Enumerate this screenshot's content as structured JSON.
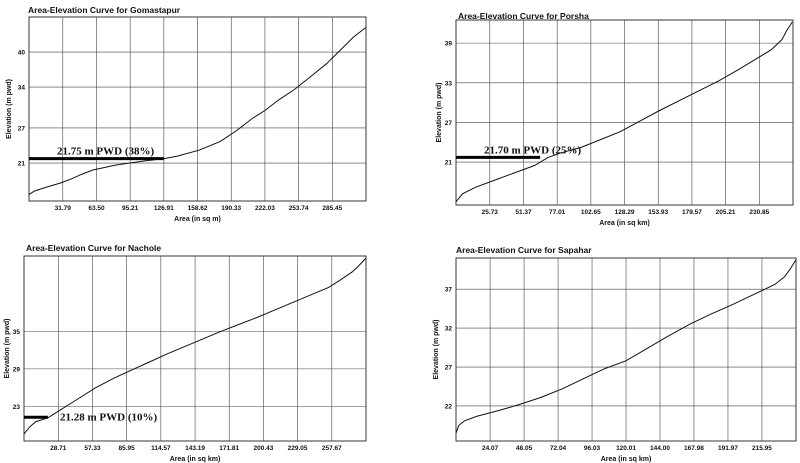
{
  "chart_data": [
    {
      "type": "line",
      "title": "Area-Elevation Curve for Gomastapur",
      "xlabel": "Area (in sq m)",
      "ylabel": "Elevation (m pwd)",
      "x_ticks": [
        "31.79",
        "63.50",
        "95.21",
        "126.91",
        "158.62",
        "190.33",
        "222.03",
        "253.74",
        "285.45"
      ],
      "y_ticks": [
        "21",
        "27",
        "34",
        "40"
      ],
      "xlim": [
        0,
        317.16
      ],
      "ylim": [
        14.5,
        46
      ],
      "grid": true,
      "series": [
        {
          "x": [
            0,
            5,
            15,
            30,
            40,
            50,
            60,
            70,
            80,
            95,
            110,
            126.91,
            140,
            160,
            180,
            195,
            210,
            222,
            235,
            250,
            265,
            280,
            295,
            305,
            317
          ],
          "y": [
            15.6,
            16.2,
            16.8,
            17.6,
            18.3,
            19.1,
            19.8,
            20.2,
            20.6,
            21.0,
            21.4,
            21.75,
            22.2,
            23.2,
            24.7,
            26.5,
            28.6,
            30.0,
            31.8,
            33.6,
            35.8,
            38.0,
            40.7,
            42.5,
            44.2
          ]
        }
      ],
      "annotation": {
        "text": "21.75 m PWD (38%)",
        "x": 126.91,
        "y": 21.75
      }
    },
    {
      "type": "line",
      "title": "Area-Elevation Curve for Porsha",
      "xlabel": "Area (in sq km)",
      "ylabel": "Elevation (m pwd)",
      "x_ticks": [
        "25.73",
        "51.37",
        "77.01",
        "102.65",
        "128.29",
        "153.93",
        "179.57",
        "205.21",
        "230.85"
      ],
      "y_ticks": [
        "21",
        "27",
        "33",
        "39"
      ],
      "xlim": [
        0,
        256.5
      ],
      "ylim": [
        14.5,
        42.5
      ],
      "grid": true,
      "series": [
        {
          "x": [
            0,
            5,
            15,
            30,
            45,
            60,
            70,
            80,
            95,
            110,
            125,
            140,
            155,
            170,
            185,
            200,
            215,
            230,
            240,
            248,
            252,
            256
          ],
          "y": [
            15.0,
            16.2,
            17.2,
            18.3,
            19.4,
            20.5,
            21.7,
            22.4,
            23.2,
            24.4,
            25.6,
            27.2,
            28.8,
            30.3,
            31.8,
            33.3,
            35.0,
            36.8,
            38.0,
            39.5,
            41.0,
            42.2
          ]
        }
      ],
      "annotation": {
        "text": "21.70 m PWD (25%)",
        "x": 64,
        "y": 21.7
      }
    },
    {
      "type": "line",
      "title": "Area-Elevation Curve for Nachole",
      "xlabel": "Area (in sq km)",
      "ylabel": "Elevation (m pwd)",
      "x_ticks": [
        "28.71",
        "57.33",
        "85.95",
        "114.57",
        "143.19",
        "171.81",
        "200.43",
        "229.05",
        "257.67"
      ],
      "y_ticks": [
        "23",
        "29",
        "35"
      ],
      "xlim": [
        0,
        286.3
      ],
      "ylim": [
        17.5,
        47
      ],
      "grid": true,
      "series": [
        {
          "x": [
            0,
            5,
            10,
            20,
            30,
            45,
            60,
            75,
            90,
            105,
            120,
            135,
            150,
            165,
            180,
            195,
            210,
            225,
            240,
            255,
            265,
            275,
            280,
            286
          ],
          "y": [
            18.6,
            19.8,
            20.6,
            21.2,
            22.4,
            24.2,
            26.0,
            27.5,
            28.8,
            30.1,
            31.4,
            32.6,
            33.8,
            35.0,
            36.1,
            37.2,
            38.4,
            39.6,
            40.8,
            42.0,
            43.2,
            44.5,
            45.4,
            46.6
          ]
        }
      ],
      "annotation": {
        "text": "21.28 m PWD (10%)",
        "x": 20,
        "y": 21.28
      }
    },
    {
      "type": "line",
      "title": "Area-Elevation Curve for Sapahar",
      "xlabel": "Area (in sq km)",
      "ylabel": "Elevation (m pwd)",
      "x_ticks": [
        "24.07",
        "48.05",
        "72.04",
        "96.03",
        "120.01",
        "144.00",
        "167.98",
        "191.97",
        "215.95"
      ],
      "y_ticks": [
        "22",
        "27",
        "32",
        "37"
      ],
      "xlim": [
        0,
        240
      ],
      "ylim": [
        17.5,
        41
      ],
      "grid": true,
      "series": [
        {
          "x": [
            0,
            2,
            6,
            15,
            30,
            45,
            60,
            75,
            90,
            105,
            120,
            135,
            150,
            165,
            180,
            195,
            210,
            225,
            232,
            236,
            240
          ],
          "y": [
            18.5,
            19.5,
            20.1,
            20.7,
            21.4,
            22.2,
            23.1,
            24.2,
            25.5,
            26.8,
            27.8,
            29.4,
            31.0,
            32.5,
            33.8,
            35.0,
            36.3,
            37.6,
            38.6,
            39.6,
            40.8
          ]
        }
      ]
    }
  ]
}
